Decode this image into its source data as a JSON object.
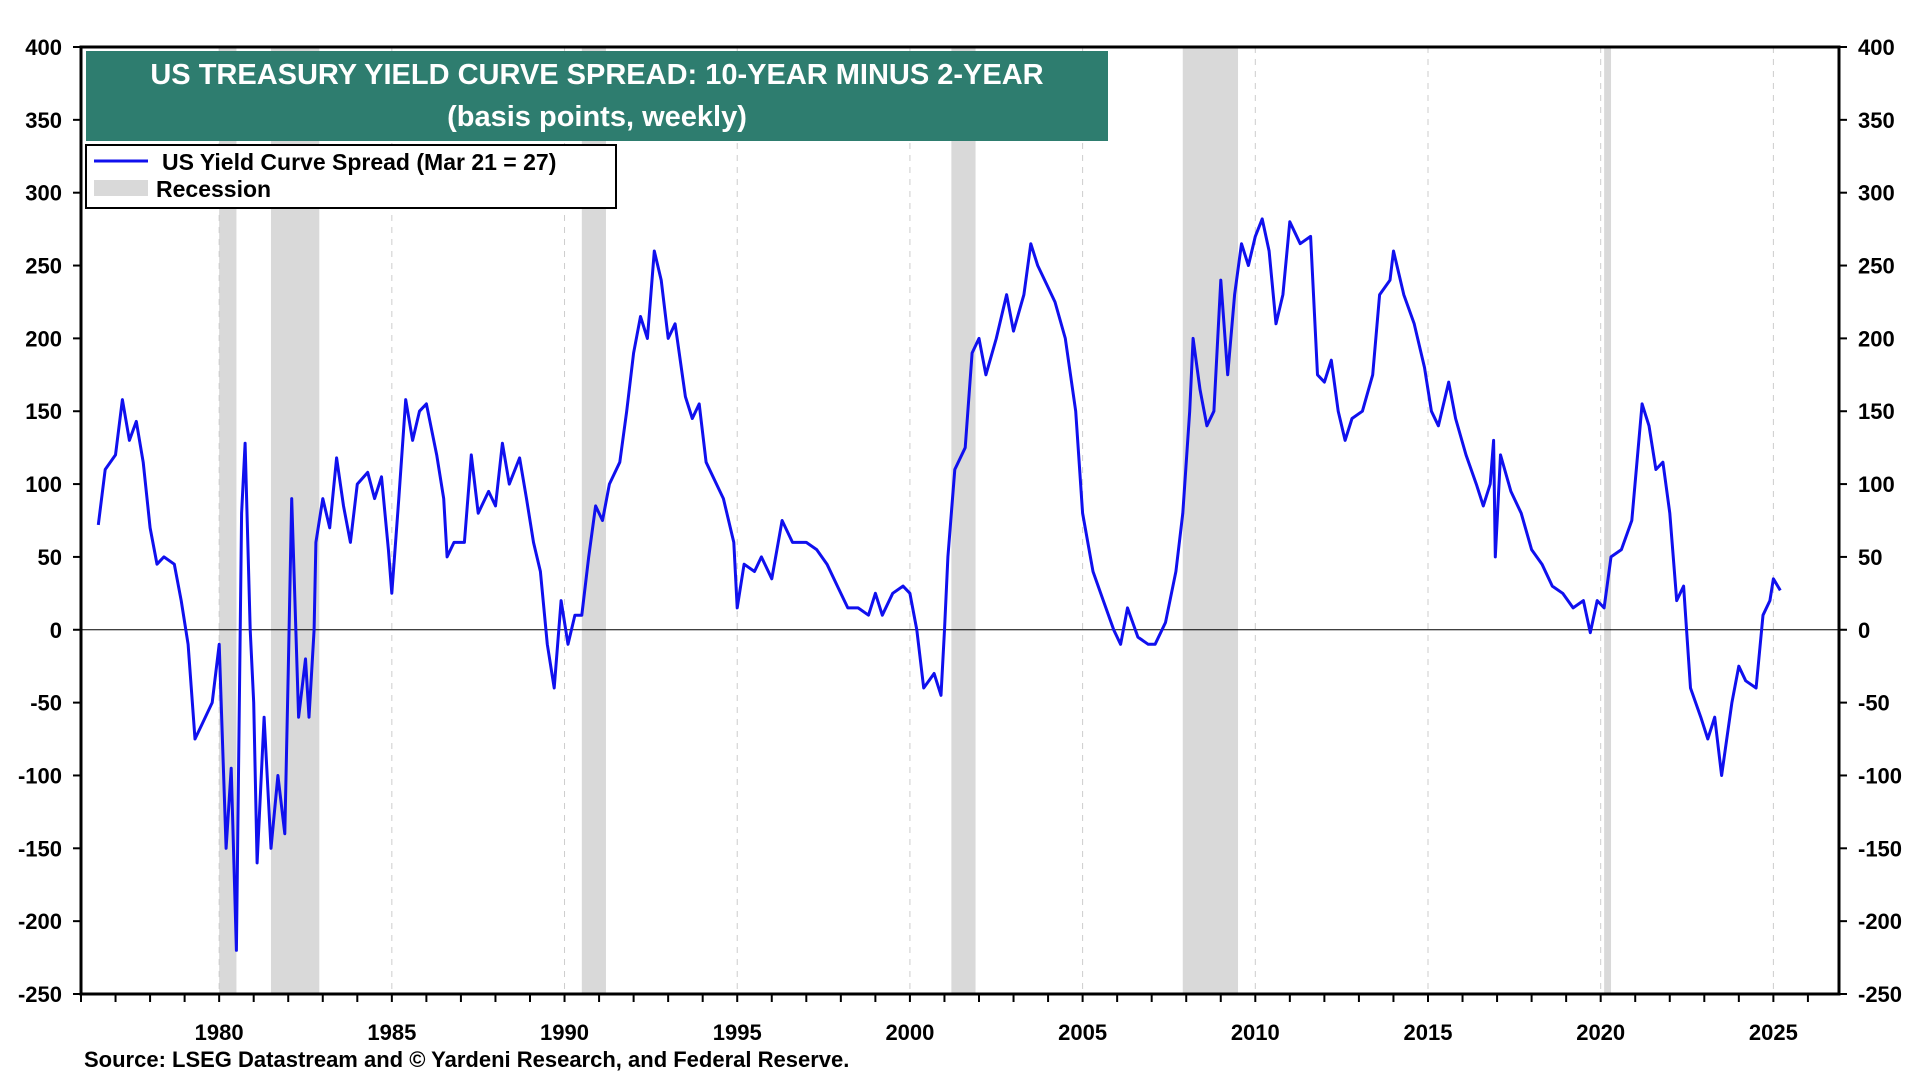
{
  "chart_data": {
    "type": "line",
    "title": "US TREASURY YIELD CURVE SPREAD: 10-YEAR MINUS 2-YEAR",
    "subtitle": "(basis points, weekly)",
    "xlabel": "",
    "ylabel": "",
    "xlim": [
      1976.0,
      2026.9
    ],
    "ylim": [
      -250,
      400
    ],
    "yticks": [
      400,
      350,
      300,
      250,
      200,
      150,
      100,
      50,
      0,
      -50,
      -100,
      -150,
      -200,
      -250
    ],
    "xticks": [
      1980,
      1985,
      1990,
      1995,
      2000,
      2005,
      2010,
      2015,
      2020,
      2025
    ],
    "grid": true,
    "legend_placement": "top-left",
    "legend": [
      "US Yield Curve Spread (Mar 21 = 27)",
      "Recession"
    ],
    "series_color": "#1010ee",
    "recession_color": "#d9d9d9",
    "title_bg": "#2e7d6f",
    "recessions": [
      [
        1980.0,
        1980.5
      ],
      [
        1981.5,
        1982.9
      ],
      [
        1990.5,
        1991.2
      ],
      [
        2001.2,
        2001.9
      ],
      [
        2007.9,
        2009.5
      ],
      [
        2020.1,
        2020.3
      ]
    ],
    "series": [
      {
        "name": "US Yield Curve Spread",
        "x": [
          1976.5,
          1976.7,
          1977.0,
          1977.2,
          1977.4,
          1977.6,
          1977.8,
          1978.0,
          1978.2,
          1978.4,
          1978.7,
          1978.9,
          1979.1,
          1979.3,
          1979.5,
          1979.8,
          1980.0,
          1980.2,
          1980.35,
          1980.5,
          1980.65,
          1980.75,
          1980.9,
          1981.0,
          1981.1,
          1981.3,
          1981.5,
          1981.7,
          1981.9,
          1982.0,
          1982.1,
          1982.3,
          1982.5,
          1982.6,
          1982.75,
          1982.8,
          1983.0,
          1983.2,
          1983.4,
          1983.6,
          1983.8,
          1984.0,
          1984.3,
          1984.5,
          1984.7,
          1984.9,
          1985.0,
          1985.2,
          1985.4,
          1985.6,
          1985.8,
          1986.0,
          1986.3,
          1986.5,
          1986.6,
          1986.8,
          1987.1,
          1987.3,
          1987.5,
          1987.8,
          1988.0,
          1988.2,
          1988.4,
          1988.7,
          1988.9,
          1989.1,
          1989.3,
          1989.5,
          1989.7,
          1989.9,
          1990.1,
          1990.3,
          1990.5,
          1990.7,
          1990.9,
          1991.1,
          1991.3,
          1991.6,
          1991.8,
          1992.0,
          1992.2,
          1992.4,
          1992.6,
          1992.8,
          1993.0,
          1993.2,
          1993.5,
          1993.7,
          1993.9,
          1994.1,
          1994.4,
          1994.6,
          1994.9,
          1995.0,
          1995.2,
          1995.5,
          1995.7,
          1996.0,
          1996.3,
          1996.6,
          1997.0,
          1997.3,
          1997.6,
          1997.9,
          1998.2,
          1998.5,
          1998.8,
          1999.0,
          1999.2,
          1999.5,
          1999.8,
          2000.0,
          2000.2,
          2000.4,
          2000.7,
          2000.9,
          2001.0,
          2001.1,
          2001.3,
          2001.6,
          2001.8,
          2002.0,
          2002.2,
          2002.5,
          2002.8,
          2003.0,
          2003.3,
          2003.5,
          2003.7,
          2004.0,
          2004.2,
          2004.5,
          2004.8,
          2005.0,
          2005.3,
          2005.6,
          2005.9,
          2006.1,
          2006.3,
          2006.6,
          2006.9,
          2007.1,
          2007.4,
          2007.7,
          2007.9,
          2008.1,
          2008.2,
          2008.4,
          2008.6,
          2008.8,
          2009.0,
          2009.2,
          2009.4,
          2009.6,
          2009.8,
          2010.0,
          2010.2,
          2010.4,
          2010.6,
          2010.8,
          2011.0,
          2011.3,
          2011.6,
          2011.8,
          2012.0,
          2012.2,
          2012.4,
          2012.6,
          2012.8,
          2013.1,
          2013.4,
          2013.6,
          2013.9,
          2014.0,
          2014.3,
          2014.6,
          2014.9,
          2015.1,
          2015.3,
          2015.6,
          2015.8,
          2016.1,
          2016.4,
          2016.6,
          2016.8,
          2016.9,
          2016.95,
          2017.1,
          2017.4,
          2017.7,
          2018.0,
          2018.3,
          2018.6,
          2018.9,
          2019.2,
          2019.5,
          2019.7,
          2019.9,
          2020.1,
          2020.3,
          2020.6,
          2020.9,
          2021.2,
          2021.4,
          2021.6,
          2021.8,
          2022.0,
          2022.2,
          2022.4,
          2022.6,
          2022.9,
          2023.1,
          2023.3,
          2023.5,
          2023.8,
          2024.0,
          2024.2,
          2024.5,
          2024.7,
          2024.9,
          2025.0,
          2025.2
        ],
        "values": [
          72,
          110,
          120,
          158,
          130,
          143,
          115,
          70,
          45,
          50,
          45,
          20,
          -10,
          -75,
          -65,
          -50,
          -10,
          -150,
          -95,
          -220,
          80,
          128,
          0,
          -50,
          -160,
          -60,
          -150,
          -100,
          -140,
          -30,
          90,
          -60,
          -20,
          -60,
          0,
          60,
          90,
          70,
          118,
          85,
          60,
          100,
          108,
          90,
          105,
          55,
          25,
          90,
          158,
          130,
          150,
          155,
          120,
          90,
          50,
          60,
          60,
          120,
          80,
          95,
          85,
          128,
          100,
          118,
          90,
          60,
          40,
          -10,
          -40,
          20,
          -10,
          10,
          10,
          50,
          85,
          75,
          100,
          115,
          150,
          190,
          215,
          200,
          260,
          240,
          200,
          210,
          160,
          145,
          155,
          115,
          100,
          90,
          60,
          15,
          45,
          40,
          50,
          35,
          75,
          60,
          60,
          55,
          45,
          30,
          15,
          15,
          10,
          25,
          10,
          25,
          30,
          25,
          0,
          -40,
          -30,
          -45,
          0,
          50,
          110,
          125,
          190,
          200,
          175,
          200,
          230,
          205,
          230,
          265,
          250,
          235,
          225,
          200,
          150,
          80,
          40,
          20,
          0,
          -10,
          15,
          -5,
          -10,
          -10,
          5,
          40,
          80,
          150,
          200,
          165,
          140,
          150,
          240,
          175,
          230,
          265,
          250,
          270,
          282,
          260,
          210,
          230,
          280,
          265,
          270,
          175,
          170,
          185,
          150,
          130,
          145,
          150,
          175,
          230,
          240,
          260,
          230,
          210,
          180,
          150,
          140,
          170,
          145,
          120,
          100,
          85,
          100,
          130,
          50,
          120,
          95,
          80,
          55,
          45,
          30,
          25,
          15,
          20,
          -2,
          20,
          15,
          50,
          55,
          75,
          155,
          140,
          110,
          115,
          80,
          20,
          30,
          -40,
          -60,
          -75,
          -60,
          -100,
          -50,
          -25,
          -35,
          -40,
          10,
          20,
          35,
          27
        ]
      }
    ]
  },
  "source": "Source: LSEG Datastream and © Yardeni Research, and Federal Reserve."
}
